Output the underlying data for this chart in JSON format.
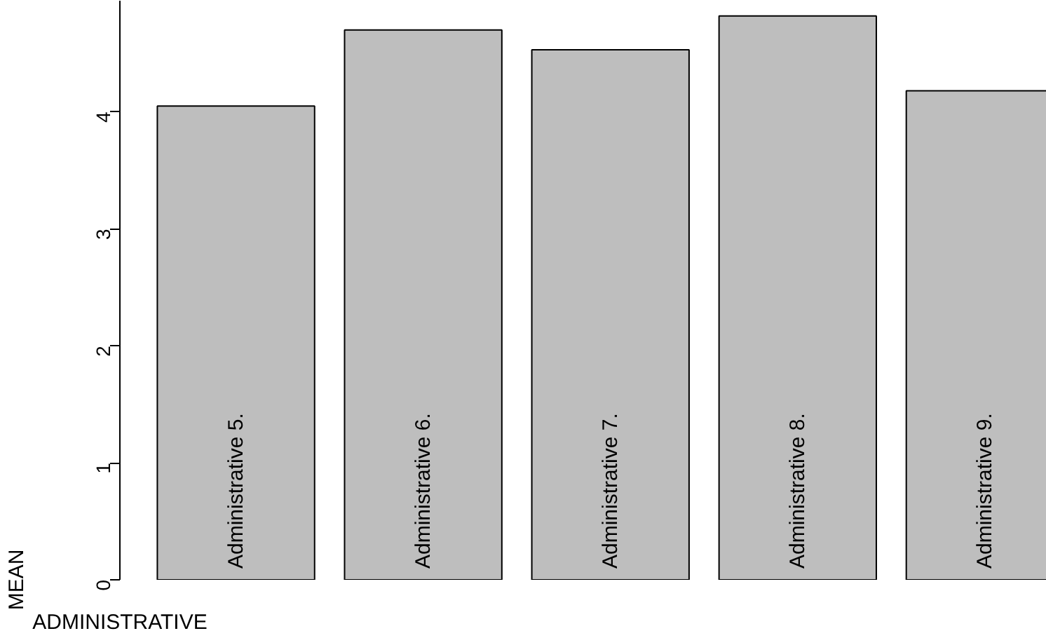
{
  "chart_data": {
    "type": "bar",
    "xlabel": "ADMINISTRATIVE",
    "ylabel": "MEAN",
    "categories": [
      "Administrative 5.",
      "Administrative 6.",
      "Administrative 7.",
      "Administrative 8.",
      "Administrative 9."
    ],
    "values": [
      4.05,
      4.7,
      4.53,
      4.82,
      4.18
    ],
    "color": "#bebebe",
    "ylim": [
      0,
      4.95
    ],
    "yticks": [
      0,
      1,
      2,
      3,
      4
    ],
    "grid": false
  }
}
